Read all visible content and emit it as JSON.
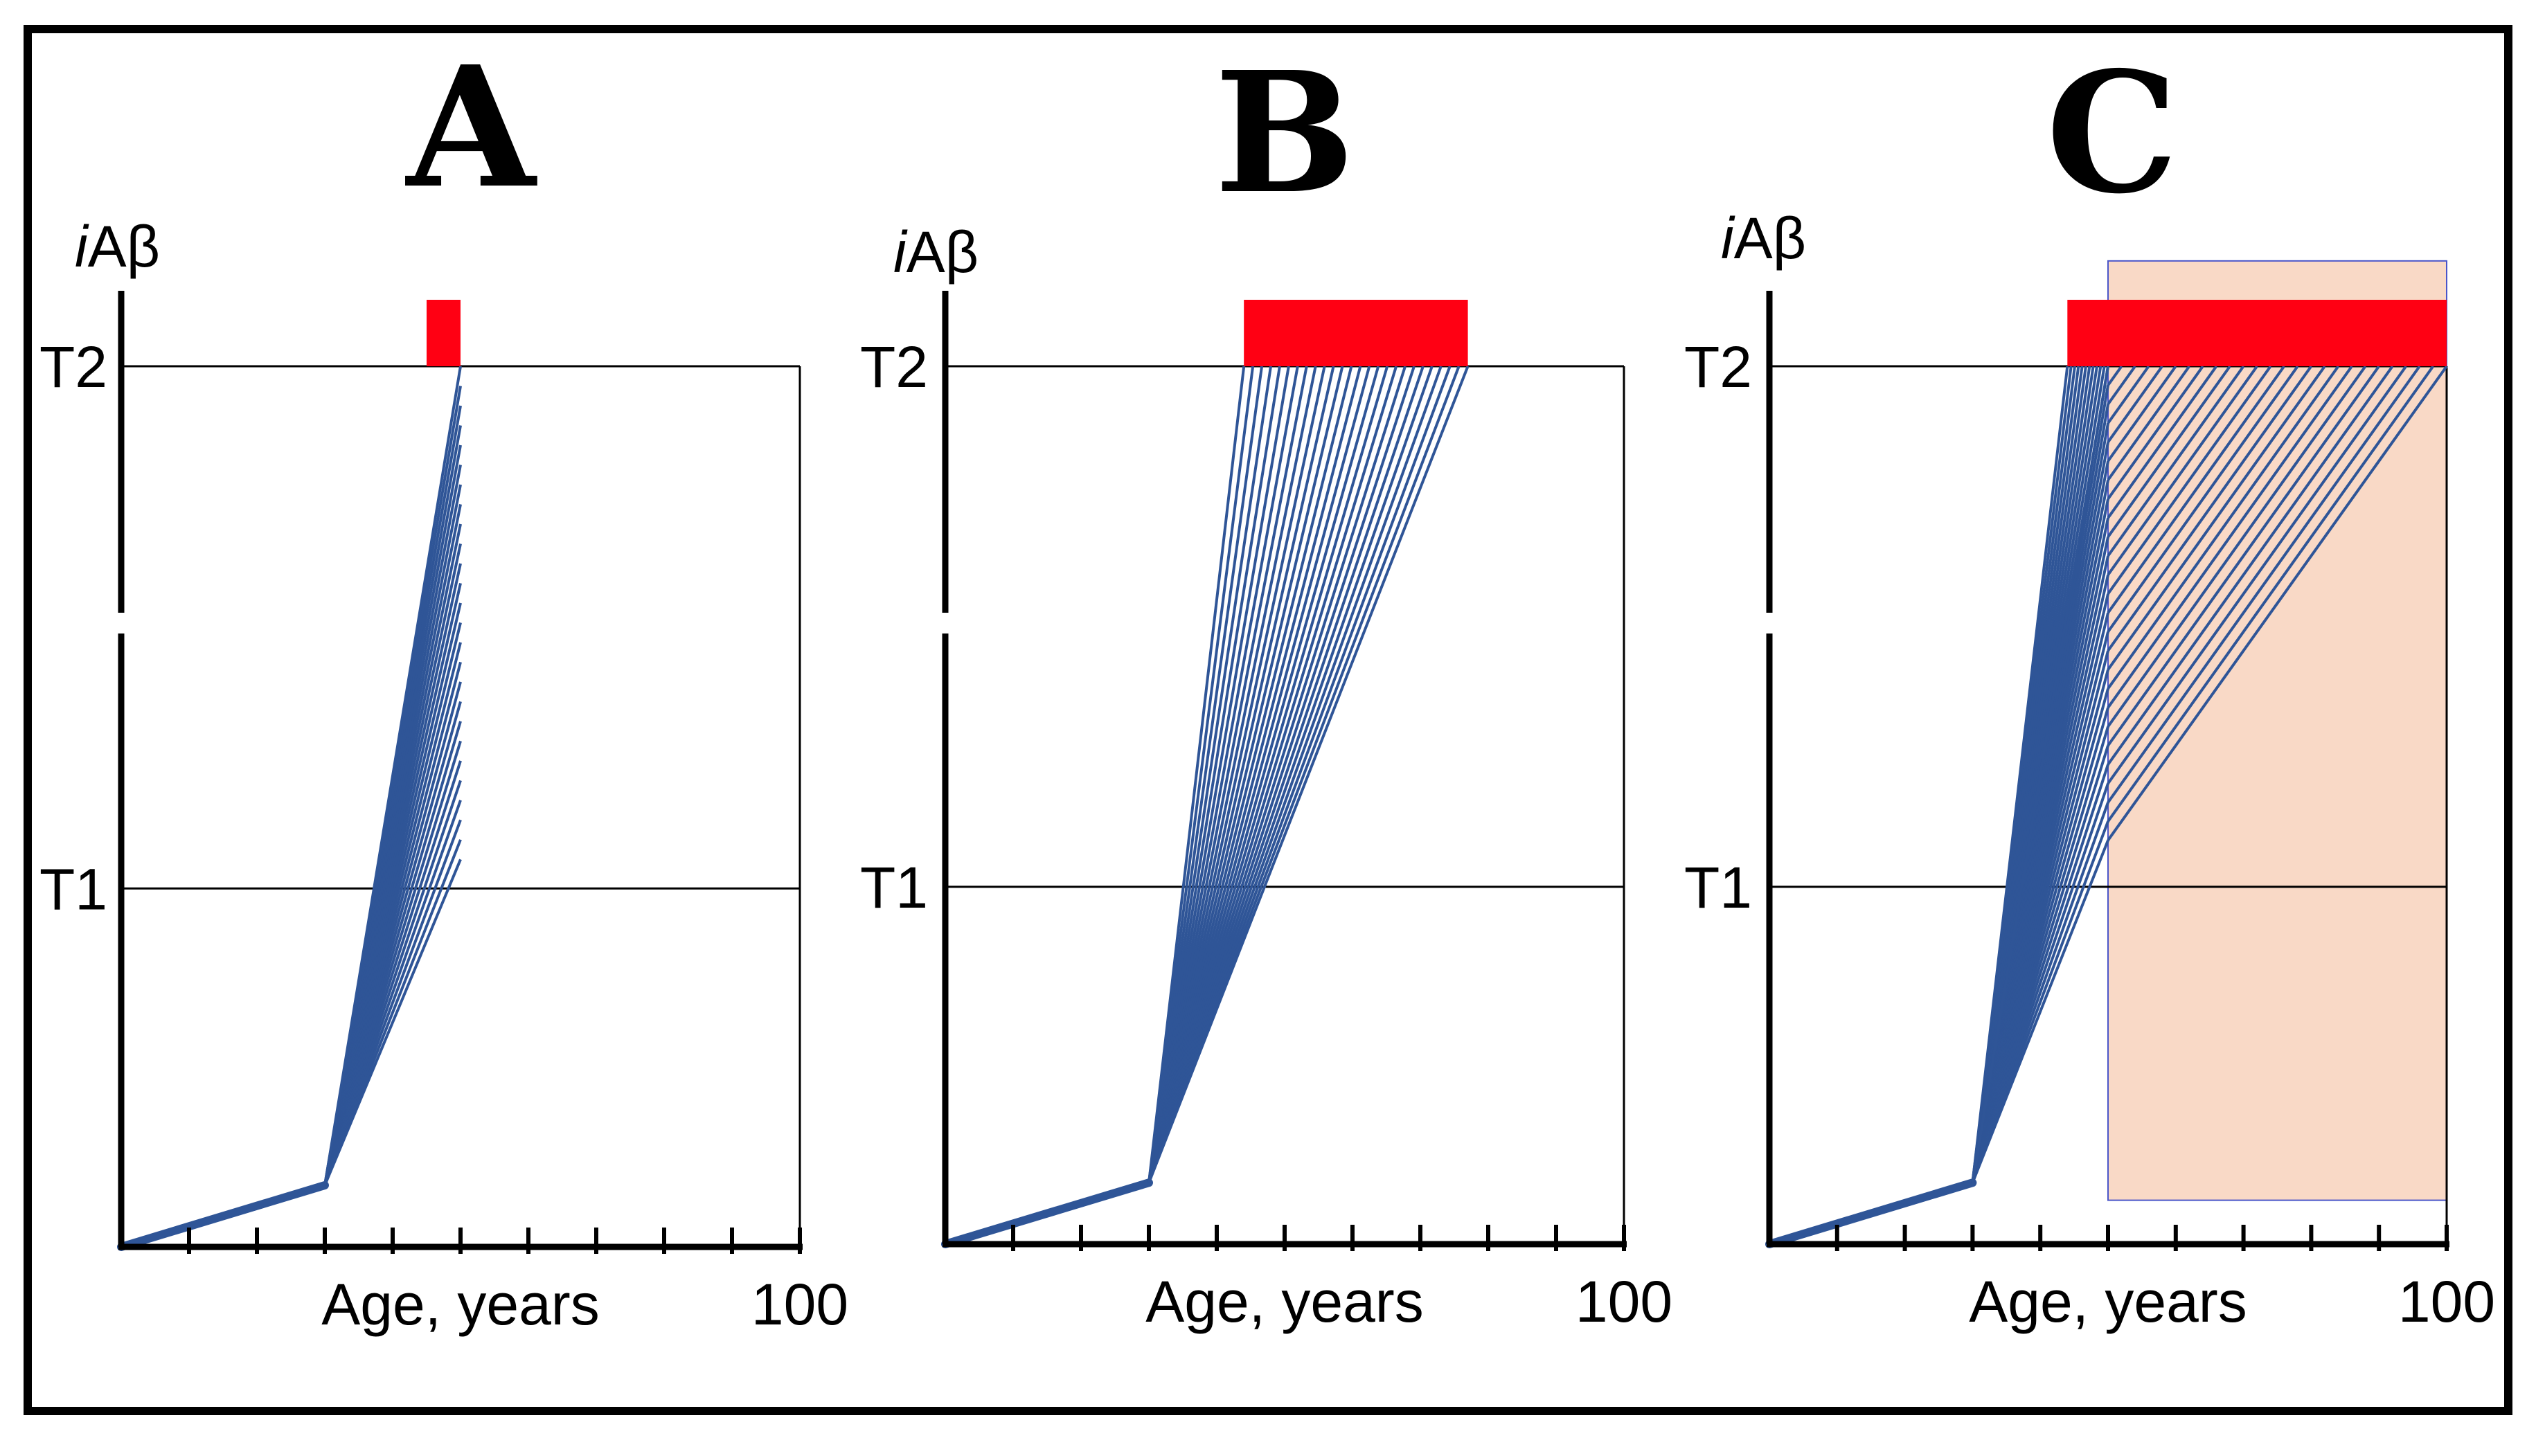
{
  "colors": {
    "trajectory": "#2f5597",
    "red_bar": "#ff0013",
    "shade": "#f9d9c6",
    "shade_border": "#4a55c9",
    "frame": "#000000",
    "threshold_line": "#000000"
  },
  "chart_data": [
    {
      "type": "line",
      "panel": "A",
      "ylabel_italic": "i",
      "ylabel_rest": "Aβ",
      "xlabel": "Age, years",
      "x_max_label": "100",
      "xlim": [
        0,
        100
      ],
      "ylim": [
        0,
        1
      ],
      "thresholds": [
        {
          "name": "T2",
          "y": 1.0
        },
        {
          "name": "T1",
          "y": 0.407
        }
      ],
      "x_ticks": [
        0,
        10,
        20,
        30,
        40,
        50,
        60,
        70,
        80,
        90,
        100
      ],
      "phase1": {
        "x": [
          0,
          30
        ],
        "y": [
          0,
          0.07
        ]
      },
      "trajectories_end_x": 50,
      "trajectories_end_y": {
        "from": 0.44,
        "to": 1.0,
        "count": 26
      },
      "red_bar": {
        "x_start": 45,
        "x_end": 50
      },
      "shaded_region": null
    },
    {
      "type": "line",
      "panel": "B",
      "ylabel_italic": "i",
      "ylabel_rest": "Aβ",
      "xlabel": "Age, years",
      "x_max_label": "100",
      "xlim": [
        0,
        100
      ],
      "ylim": [
        0,
        1
      ],
      "thresholds": [
        {
          "name": "T2",
          "y": 1.0
        },
        {
          "name": "T1",
          "y": 0.407
        }
      ],
      "x_ticks": [
        0,
        10,
        20,
        30,
        40,
        50,
        60,
        70,
        80,
        90,
        100
      ],
      "phase1": {
        "x": [
          0,
          30
        ],
        "y": [
          0,
          0.07
        ]
      },
      "trajectories_end_y": 1.0,
      "trajectories_end_x": {
        "from": 44,
        "to": 77,
        "count": 26
      },
      "red_bar": {
        "x_start": 44,
        "x_end": 77
      },
      "shaded_region": null
    },
    {
      "type": "line",
      "panel": "C",
      "ylabel_italic": "i",
      "ylabel_rest": "Aβ",
      "xlabel": "Age, years",
      "x_max_label": "100",
      "xlim": [
        0,
        100
      ],
      "ylim": [
        0,
        1
      ],
      "thresholds": [
        {
          "name": "T2",
          "y": 1.0
        },
        {
          "name": "T1",
          "y": 0.407
        }
      ],
      "x_ticks": [
        0,
        10,
        20,
        30,
        40,
        50,
        60,
        70,
        80,
        90,
        100
      ],
      "phase1": {
        "x": [
          0,
          30
        ],
        "y": [
          0,
          0.07
        ]
      },
      "trajectories_end_y": 1.0,
      "trajectories_end_x": {
        "from": 44,
        "to": 50,
        "count": 12
      },
      "hatched_trajectories": {
        "x_start": 50,
        "y_start": {
          "from": 0.46,
          "to": 1.0
        },
        "x_end": {
          "from": 50,
          "to": 100
        },
        "count": 26
      },
      "red_bar": {
        "x_start": 44,
        "x_end": 100
      },
      "shaded_region": {
        "x_start": 50,
        "x_end": 100,
        "y_bottom": 0.05,
        "y_top": 1.12
      }
    }
  ]
}
